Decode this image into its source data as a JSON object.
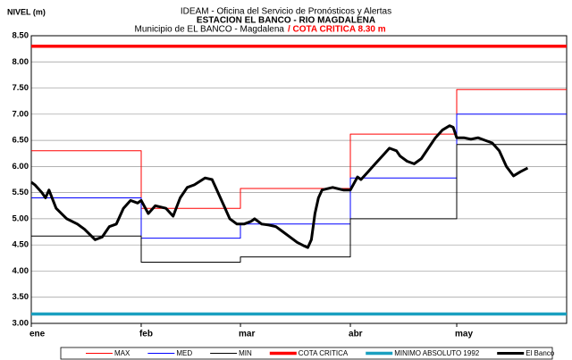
{
  "chart_data": {
    "type": "line",
    "title": "IDEAM - Oficina del Servicio de Pronósticos y Alertas",
    "title2": "ESTACION EL BANCO - RIO MAGDALENA",
    "subtitle": "Municipio de EL BANCO - Magdalena",
    "annotation": "/ COTA CRITICA 8.30 m",
    "ylabel": "NIVEL (m)",
    "xlim": [
      0,
      151
    ],
    "xticks": [
      {
        "value": 0,
        "label": "ene"
      },
      {
        "value": 31,
        "label": "feb"
      },
      {
        "value": 59,
        "label": "mar"
      },
      {
        "value": 90,
        "label": "abr"
      },
      {
        "value": 120,
        "label": "may"
      }
    ],
    "ylim": [
      3,
      8.5
    ],
    "yticks": [
      {
        "value": 3,
        "label": "3.00"
      },
      {
        "value": 3.5,
        "label": "3.50"
      },
      {
        "value": 4,
        "label": "4.00"
      },
      {
        "value": 4.5,
        "label": "4.50"
      },
      {
        "value": 5,
        "label": "5.00"
      },
      {
        "value": 5.5,
        "label": "5.50"
      },
      {
        "value": 6,
        "label": "6.00"
      },
      {
        "value": 6.5,
        "label": "6.50"
      },
      {
        "value": 7,
        "label": "7.00"
      },
      {
        "value": 7.5,
        "label": "7.50"
      },
      {
        "value": 8,
        "label": "8.00"
      },
      {
        "value": 8.5,
        "label": "8.50"
      }
    ],
    "grid": true,
    "legend": "bottom",
    "series": [
      {
        "name": "MAX",
        "color": "#ff0000",
        "x": [
          0,
          31,
          31,
          59,
          59,
          90,
          90,
          120,
          120,
          151
        ],
        "values": [
          6.3,
          6.3,
          5.2,
          5.2,
          5.58,
          5.58,
          6.62,
          6.62,
          7.47,
          7.47
        ]
      },
      {
        "name": "MED",
        "color": "#0000ff",
        "x": [
          0,
          31,
          31,
          59,
          59,
          90,
          90,
          120,
          120,
          151
        ],
        "values": [
          5.4,
          5.4,
          4.63,
          4.63,
          4.9,
          4.9,
          5.78,
          5.78,
          7.0,
          7.0
        ]
      },
      {
        "name": "MIN",
        "color": "#000000",
        "x": [
          0,
          31,
          31,
          59,
          59,
          90,
          90,
          120,
          120,
          151
        ],
        "values": [
          4.67,
          4.67,
          4.17,
          4.17,
          4.27,
          4.27,
          5.0,
          5.0,
          6.42,
          6.42
        ]
      },
      {
        "name": "COTA CRITICA",
        "color": "#ff0000",
        "x": [
          0,
          151
        ],
        "values": [
          8.3,
          8.3
        ]
      },
      {
        "name": "MINIMO ABSOLUTO 1992",
        "color": "#1aa0c0",
        "x": [
          0,
          151
        ],
        "values": [
          3.18,
          3.18
        ]
      },
      {
        "name": "El Banco",
        "color": "#000000",
        "x": [
          0,
          1,
          3,
          4,
          5,
          7,
          10,
          13,
          15,
          18,
          20,
          22,
          24,
          26,
          28,
          30,
          31,
          33,
          35,
          38,
          40,
          42,
          44,
          46,
          49,
          51,
          52,
          54,
          56,
          58,
          60,
          62,
          63,
          65,
          67,
          69,
          71,
          73,
          75,
          77,
          78,
          79,
          80,
          81,
          82,
          85,
          88,
          90,
          92,
          93,
          95,
          97,
          99,
          101,
          103,
          104,
          106,
          108,
          110,
          112,
          114,
          116,
          118,
          119,
          120,
          122,
          124,
          126,
          128,
          130,
          132,
          134,
          136,
          138,
          140
        ],
        "values": [
          5.7,
          5.65,
          5.5,
          5.4,
          5.55,
          5.2,
          5.0,
          4.9,
          4.8,
          4.6,
          4.65,
          4.85,
          4.9,
          5.2,
          5.35,
          5.3,
          5.35,
          5.1,
          5.25,
          5.2,
          5.05,
          5.4,
          5.6,
          5.65,
          5.78,
          5.75,
          5.6,
          5.3,
          5.0,
          4.9,
          4.9,
          4.95,
          5.0,
          4.9,
          4.88,
          4.85,
          4.75,
          4.65,
          4.55,
          4.48,
          4.45,
          4.6,
          5.1,
          5.4,
          5.55,
          5.6,
          5.55,
          5.55,
          5.8,
          5.75,
          5.9,
          6.05,
          6.2,
          6.35,
          6.3,
          6.2,
          6.1,
          6.05,
          6.15,
          6.35,
          6.55,
          6.7,
          6.78,
          6.75,
          6.55,
          6.55,
          6.52,
          6.55,
          6.5,
          6.45,
          6.3,
          6.0,
          5.82,
          5.9,
          5.97
        ]
      }
    ]
  }
}
